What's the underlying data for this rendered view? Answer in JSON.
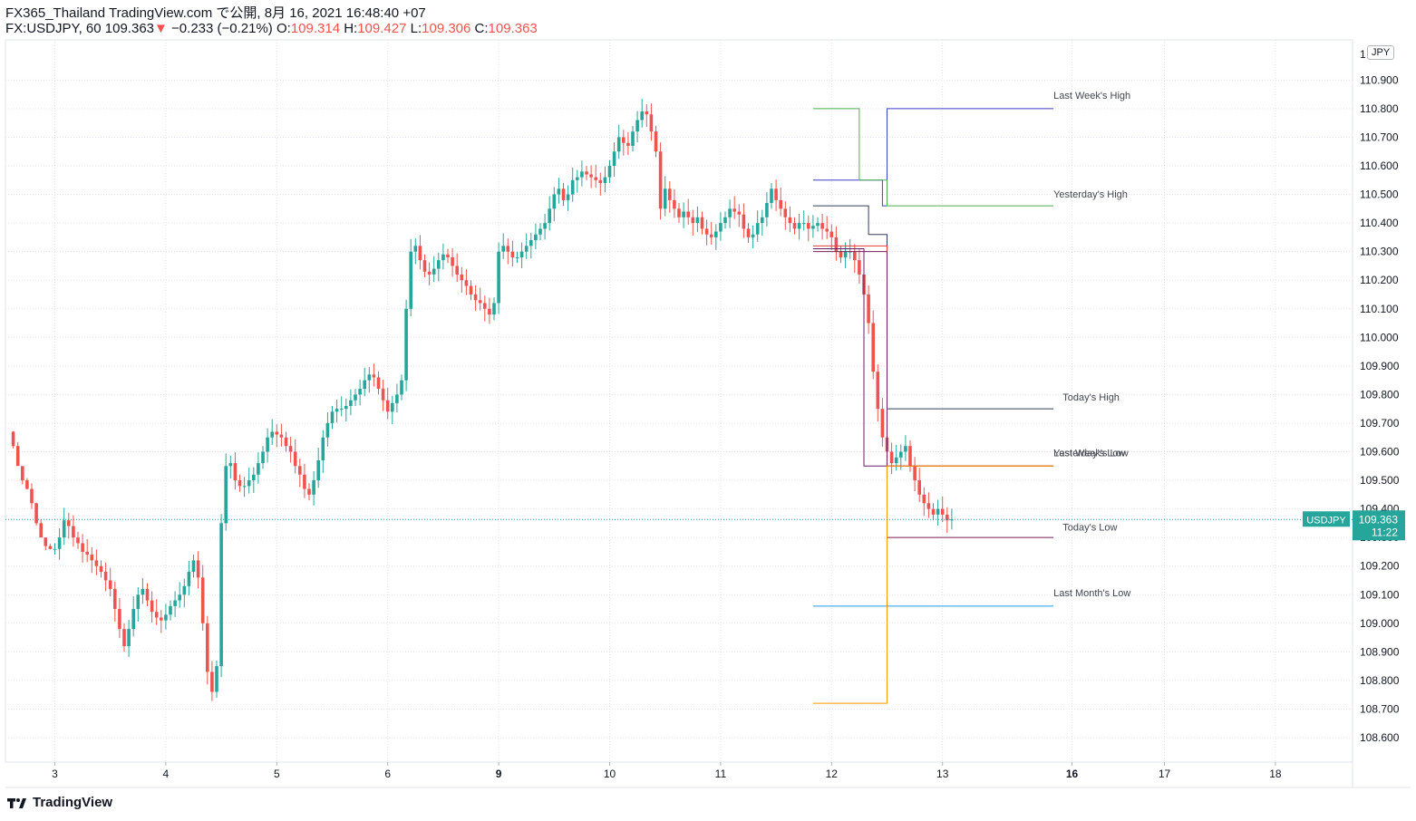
{
  "header": {
    "publisher": "FX365_Thailand TradingView.com で公開, 8月 16, 2021 16:48:40 +07",
    "symbol": "FX:USDJPY, 60",
    "last": "109.363",
    "change_arrow": "▼",
    "change": "−0.233 (−0.21%)",
    "o_label": "O:",
    "o_value": "109.314",
    "h_label": "H:",
    "h_value": "109.427",
    "l_label": "L:",
    "l_value": "109.306",
    "c_label": "C:",
    "c_value": "109.363"
  },
  "currency_badge": "JPY",
  "footer": {
    "brand": "TradingView"
  },
  "colors": {
    "up": "#26a69a",
    "down": "#ef5350",
    "grid": "#e0e3eb",
    "last_week_high": "#3f3fc8",
    "yesterday_high": "#4caf50",
    "today_high": "#333f57",
    "yesterday_low": "#e53935",
    "last_week_low": "#6a1b6a",
    "today_low": "#7b1f57",
    "last_month_low": "#2196f3",
    "orange": "#ff9800"
  },
  "chart_data": {
    "type": "candlestick",
    "symbol": "USDJPY",
    "timeframe": "60",
    "ylim": [
      108.5,
      111.02
    ],
    "y_ticks": [
      "110.900",
      "110.800",
      "110.700",
      "110.600",
      "110.500",
      "110.400",
      "110.300",
      "110.200",
      "110.100",
      "110.000",
      "109.900",
      "109.800",
      "109.700",
      "109.600",
      "109.500",
      "109.400",
      "109.300",
      "109.200",
      "109.100",
      "109.000",
      "108.900",
      "108.800",
      "108.700",
      "108.600"
    ],
    "x_ticks": [
      {
        "label": "3",
        "pos": 0
      },
      {
        "label": "4",
        "pos": 24
      },
      {
        "label": "5",
        "pos": 48
      },
      {
        "label": "6",
        "pos": 72
      },
      {
        "label": "9",
        "pos": 96,
        "bold": true
      },
      {
        "label": "10",
        "pos": 120
      },
      {
        "label": "11",
        "pos": 144
      },
      {
        "label": "12",
        "pos": 168
      },
      {
        "label": "13",
        "pos": 192
      },
      {
        "label": "16",
        "pos": 220,
        "bold": true
      },
      {
        "label": "17",
        "pos": 240
      },
      {
        "label": "18",
        "pos": 264
      }
    ],
    "close_path": [
      [
        -10,
        109.67
      ],
      [
        -9,
        109.62
      ],
      [
        -8,
        109.55
      ],
      [
        -7,
        109.5
      ],
      [
        -6,
        109.47
      ],
      [
        -5,
        109.42
      ],
      [
        -4,
        109.35
      ],
      [
        -3,
        109.3
      ],
      [
        -2,
        109.27
      ],
      [
        -1,
        109.26
      ],
      [
        0,
        109.26
      ],
      [
        1,
        109.3
      ],
      [
        2,
        109.36
      ],
      [
        3,
        109.34
      ],
      [
        4,
        109.3
      ],
      [
        5,
        109.28
      ],
      [
        6,
        109.25
      ],
      [
        7,
        109.24
      ],
      [
        8,
        109.22
      ],
      [
        9,
        109.2
      ],
      [
        10,
        109.18
      ],
      [
        11,
        109.15
      ],
      [
        12,
        109.12
      ],
      [
        13,
        109.05
      ],
      [
        14,
        108.98
      ],
      [
        15,
        108.92
      ],
      [
        16,
        108.98
      ],
      [
        17,
        109.05
      ],
      [
        18,
        109.1
      ],
      [
        19,
        109.12
      ],
      [
        20,
        109.08
      ],
      [
        21,
        109.04
      ],
      [
        22,
        109.02
      ],
      [
        23,
        109.01
      ],
      [
        24,
        109.03
      ],
      [
        25,
        109.06
      ],
      [
        26,
        109.08
      ],
      [
        27,
        109.1
      ],
      [
        28,
        109.13
      ],
      [
        29,
        109.18
      ],
      [
        30,
        109.22
      ],
      [
        31,
        109.16
      ],
      [
        32,
        109.0
      ],
      [
        33,
        108.83
      ],
      [
        34,
        108.76
      ],
      [
        35,
        108.85
      ],
      [
        36,
        109.35
      ],
      [
        37,
        109.55
      ],
      [
        38,
        109.56
      ],
      [
        39,
        109.5
      ],
      [
        40,
        109.48
      ],
      [
        41,
        109.48
      ],
      [
        42,
        109.5
      ],
      [
        43,
        109.52
      ],
      [
        44,
        109.56
      ],
      [
        45,
        109.6
      ],
      [
        46,
        109.65
      ],
      [
        47,
        109.67
      ],
      [
        48,
        109.66
      ],
      [
        49,
        109.65
      ],
      [
        50,
        109.62
      ],
      [
        51,
        109.6
      ],
      [
        52,
        109.55
      ],
      [
        53,
        109.52
      ],
      [
        54,
        109.47
      ],
      [
        55,
        109.45
      ],
      [
        56,
        109.5
      ],
      [
        57,
        109.57
      ],
      [
        58,
        109.65
      ],
      [
        59,
        109.7
      ],
      [
        60,
        109.74
      ],
      [
        61,
        109.75
      ],
      [
        62,
        109.75
      ],
      [
        63,
        109.76
      ],
      [
        64,
        109.78
      ],
      [
        65,
        109.8
      ],
      [
        66,
        109.82
      ],
      [
        67,
        109.85
      ],
      [
        68,
        109.87
      ],
      [
        69,
        109.86
      ],
      [
        70,
        109.82
      ],
      [
        71,
        109.78
      ],
      [
        72,
        109.74
      ],
      [
        73,
        109.77
      ],
      [
        74,
        109.8
      ],
      [
        75,
        109.85
      ],
      [
        76,
        110.1
      ],
      [
        77,
        110.3
      ],
      [
        78,
        110.32
      ],
      [
        79,
        110.27
      ],
      [
        80,
        110.23
      ],
      [
        81,
        110.22
      ],
      [
        82,
        110.24
      ],
      [
        83,
        110.27
      ],
      [
        84,
        110.29
      ],
      [
        85,
        110.28
      ],
      [
        86,
        110.25
      ],
      [
        87,
        110.22
      ],
      [
        88,
        110.2
      ],
      [
        89,
        110.18
      ],
      [
        90,
        110.15
      ],
      [
        91,
        110.13
      ],
      [
        92,
        110.12
      ],
      [
        93,
        110.1
      ],
      [
        94,
        110.08
      ],
      [
        95,
        110.12
      ],
      [
        96,
        110.3
      ],
      [
        97,
        110.32
      ],
      [
        98,
        110.3
      ],
      [
        99,
        110.28
      ],
      [
        100,
        110.28
      ],
      [
        101,
        110.3
      ],
      [
        102,
        110.32
      ],
      [
        103,
        110.34
      ],
      [
        104,
        110.36
      ],
      [
        105,
        110.38
      ],
      [
        106,
        110.4
      ],
      [
        107,
        110.45
      ],
      [
        108,
        110.5
      ],
      [
        109,
        110.52
      ],
      [
        110,
        110.48
      ],
      [
        111,
        110.5
      ],
      [
        112,
        110.55
      ],
      [
        113,
        110.56
      ],
      [
        114,
        110.58
      ],
      [
        115,
        110.57
      ],
      [
        116,
        110.56
      ],
      [
        117,
        110.55
      ],
      [
        118,
        110.54
      ],
      [
        119,
        110.56
      ],
      [
        120,
        110.6
      ],
      [
        121,
        110.65
      ],
      [
        122,
        110.7
      ],
      [
        123,
        110.68
      ],
      [
        124,
        110.67
      ],
      [
        125,
        110.72
      ],
      [
        126,
        110.76
      ],
      [
        127,
        110.79
      ],
      [
        128,
        110.78
      ],
      [
        129,
        110.72
      ],
      [
        130,
        110.65
      ],
      [
        131,
        110.45
      ],
      [
        132,
        110.52
      ],
      [
        133,
        110.48
      ],
      [
        134,
        110.45
      ],
      [
        135,
        110.42
      ],
      [
        136,
        110.44
      ],
      [
        137,
        110.42
      ],
      [
        138,
        110.4
      ],
      [
        139,
        110.42
      ],
      [
        140,
        110.38
      ],
      [
        141,
        110.36
      ],
      [
        142,
        110.35
      ],
      [
        143,
        110.37
      ],
      [
        144,
        110.4
      ],
      [
        145,
        110.42
      ],
      [
        146,
        110.45
      ],
      [
        147,
        110.44
      ],
      [
        148,
        110.43
      ],
      [
        149,
        110.38
      ],
      [
        150,
        110.35
      ],
      [
        151,
        110.36
      ],
      [
        152,
        110.4
      ],
      [
        153,
        110.42
      ],
      [
        154,
        110.47
      ],
      [
        155,
        110.52
      ],
      [
        156,
        110.48
      ],
      [
        157,
        110.45
      ],
      [
        158,
        110.42
      ],
      [
        159,
        110.4
      ],
      [
        160,
        110.38
      ],
      [
        161,
        110.4
      ],
      [
        162,
        110.4
      ],
      [
        163,
        110.38
      ],
      [
        164,
        110.39
      ],
      [
        165,
        110.4
      ],
      [
        166,
        110.38
      ],
      [
        167,
        110.37
      ],
      [
        168,
        110.35
      ],
      [
        169,
        110.3
      ],
      [
        170,
        110.28
      ],
      [
        171,
        110.3
      ],
      [
        172,
        110.3
      ],
      [
        173,
        110.27
      ],
      [
        174,
        110.22
      ],
      [
        175,
        110.15
      ],
      [
        176,
        110.05
      ],
      [
        177,
        109.88
      ],
      [
        178,
        109.75
      ],
      [
        179,
        109.65
      ],
      [
        180,
        109.6
      ],
      [
        181,
        109.56
      ],
      [
        182,
        109.58
      ],
      [
        183,
        109.6
      ],
      [
        184,
        109.62
      ],
      [
        185,
        109.55
      ],
      [
        186,
        109.5
      ],
      [
        187,
        109.45
      ],
      [
        188,
        109.42
      ],
      [
        189,
        109.4
      ],
      [
        190,
        109.38
      ],
      [
        191,
        109.4
      ],
      [
        192,
        109.38
      ],
      [
        193,
        109.36
      ],
      [
        194,
        109.363
      ]
    ],
    "levels": [
      {
        "name": "Last Week's High",
        "color_key": "last_week_high",
        "segments": [
          [
            164,
            179,
            110.55
          ],
          [
            179,
            180,
            110.46
          ],
          [
            180,
            216,
            110.8
          ]
        ]
      },
      {
        "name": "Yesterday's High",
        "color_key": "yesterday_high",
        "segments": [
          [
            164,
            174,
            110.8
          ],
          [
            174,
            176,
            110.55
          ],
          [
            176,
            180,
            110.55
          ],
          [
            180,
            216,
            110.46
          ]
        ]
      },
      {
        "name": "Today's High",
        "color_key": "today_high",
        "segments": [
          [
            164,
            176,
            110.46
          ],
          [
            176,
            180,
            110.36
          ],
          [
            180,
            216,
            109.75
          ]
        ]
      },
      {
        "name": "Yesterday's Low",
        "color_key": "yesterday_low",
        "segments": [
          [
            164,
            176,
            110.32
          ],
          [
            176,
            180,
            110.32
          ],
          [
            180,
            216,
            109.55
          ]
        ]
      },
      {
        "name": "Last Week's Low",
        "color_key": "last_week_low",
        "segments": [
          [
            164,
            175,
            110.31
          ],
          [
            175,
            180,
            109.55
          ],
          [
            180,
            216,
            109.55
          ]
        ]
      },
      {
        "name": "Today's Low",
        "color_key": "today_low",
        "segments": [
          [
            164,
            180,
            110.3
          ],
          [
            180,
            216,
            109.3
          ]
        ]
      },
      {
        "name": "Last Month's Low",
        "color_key": "last_month_low",
        "segments": [
          [
            164,
            216,
            109.06
          ]
        ]
      },
      {
        "name": "",
        "color_key": "orange",
        "segments": [
          [
            164,
            180,
            108.72
          ],
          [
            180,
            216,
            109.55
          ]
        ]
      }
    ],
    "level_labels": [
      {
        "text": "Last Week's High",
        "price": 110.825,
        "x": 216
      },
      {
        "text": "Yesterday's High",
        "price": 110.48,
        "x": 216
      },
      {
        "text": "Today's High",
        "price": 109.77,
        "x": 218
      },
      {
        "text": "Last Week's Low",
        "price": 109.575,
        "x": 216
      },
      {
        "text": "Yesterday's Low",
        "price": 109.575,
        "x": 216
      },
      {
        "text": "Today's Low",
        "price": 109.315,
        "x": 218
      },
      {
        "text": "Last Month's Low",
        "price": 109.085,
        "x": 216
      }
    ],
    "last_price": {
      "symbol": "USDJPY",
      "value": "109.363",
      "countdown": "11:22",
      "price": 109.363
    },
    "axis_top_label": "1"
  }
}
